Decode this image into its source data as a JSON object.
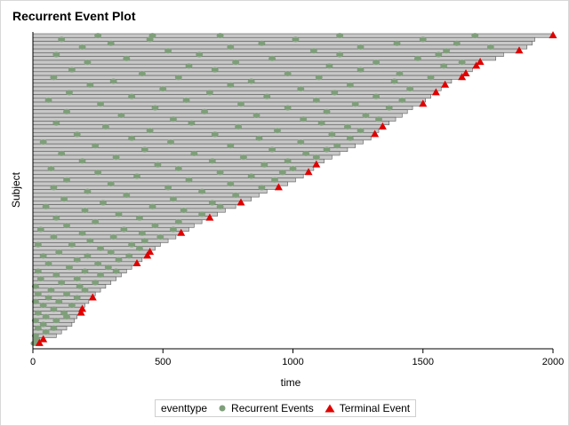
{
  "chart_data": {
    "type": "scatter",
    "title": "Recurrent Event Plot",
    "xlabel": "time",
    "ylabel": "Subject",
    "xlim": [
      0,
      2000
    ],
    "xticks": [
      0,
      500,
      1000,
      1500,
      2000
    ],
    "legend_title": "eventtype",
    "legend_position": "bottom",
    "colors": {
      "recurrent": "#7f9f7a",
      "terminal": "#e00000",
      "bar_fill": "#c8c8c8",
      "bar_edge": "#595959"
    },
    "series": [
      {
        "name": "Recurrent Events",
        "marker": "circle"
      },
      {
        "name": "Terminal Event",
        "marker": "triangle"
      }
    ],
    "subjects": [
      {
        "end": 2000,
        "terminal": true,
        "events": [
          250,
          460,
          720,
          1180,
          1700
        ]
      },
      {
        "end": 1930,
        "terminal": false,
        "events": [
          110,
          450,
          1010,
          1500
        ]
      },
      {
        "end": 1920,
        "terminal": false,
        "events": [
          300,
          880,
          1400,
          1630
        ]
      },
      {
        "end": 1900,
        "terminal": false,
        "events": [
          190,
          760,
          1260,
          1760
        ]
      },
      {
        "end": 1870,
        "terminal": true,
        "events": [
          520,
          1080,
          1590
        ]
      },
      {
        "end": 1810,
        "terminal": false,
        "events": [
          90,
          640,
          1180,
          1560
        ]
      },
      {
        "end": 1780,
        "terminal": false,
        "events": [
          360,
          920,
          1480
        ]
      },
      {
        "end": 1720,
        "terminal": true,
        "events": [
          210,
          780,
          1320,
          1650
        ]
      },
      {
        "end": 1705,
        "terminal": true,
        "events": [
          600,
          1140,
          1580
        ]
      },
      {
        "end": 1690,
        "terminal": false,
        "events": [
          150,
          700,
          1260
        ]
      },
      {
        "end": 1665,
        "terminal": true,
        "events": [
          420,
          980,
          1410
        ]
      },
      {
        "end": 1650,
        "terminal": true,
        "events": [
          80,
          560,
          1100,
          1530
        ]
      },
      {
        "end": 1610,
        "terminal": false,
        "events": [
          310,
          840,
          1390
        ]
      },
      {
        "end": 1585,
        "terminal": true,
        "events": [
          220,
          760,
          1220
        ]
      },
      {
        "end": 1570,
        "terminal": false,
        "events": [
          500,
          1030,
          1450
        ]
      },
      {
        "end": 1550,
        "terminal": true,
        "events": [
          140,
          680,
          1160
        ]
      },
      {
        "end": 1530,
        "terminal": false,
        "events": [
          380,
          900,
          1320
        ]
      },
      {
        "end": 1510,
        "terminal": false,
        "events": [
          60,
          590,
          1090,
          1420
        ]
      },
      {
        "end": 1500,
        "terminal": true,
        "events": [
          260,
          800,
          1240
        ]
      },
      {
        "end": 1460,
        "terminal": false,
        "events": [
          470,
          980,
          1370
        ]
      },
      {
        "end": 1440,
        "terminal": false,
        "events": [
          130,
          660,
          1130
        ]
      },
      {
        "end": 1420,
        "terminal": false,
        "events": [
          340,
          860,
          1280
        ]
      },
      {
        "end": 1395,
        "terminal": false,
        "events": [
          540,
          1040,
          1330
        ]
      },
      {
        "end": 1370,
        "terminal": false,
        "events": [
          90,
          610,
          1110
        ]
      },
      {
        "end": 1345,
        "terminal": true,
        "events": [
          280,
          790,
          1210
        ]
      },
      {
        "end": 1330,
        "terminal": false,
        "events": [
          450,
          940,
          1260
        ]
      },
      {
        "end": 1315,
        "terminal": true,
        "events": [
          170,
          700,
          1150
        ]
      },
      {
        "end": 1300,
        "terminal": false,
        "events": [
          380,
          870,
          1220
        ]
      },
      {
        "end": 1270,
        "terminal": false,
        "events": [
          40,
          530,
          1030
        ]
      },
      {
        "end": 1240,
        "terminal": false,
        "events": [
          240,
          760,
          1170
        ]
      },
      {
        "end": 1210,
        "terminal": false,
        "events": [
          430,
          920,
          1130
        ]
      },
      {
        "end": 1180,
        "terminal": false,
        "events": [
          110,
          620,
          1050
        ]
      },
      {
        "end": 1150,
        "terminal": false,
        "events": [
          320,
          810,
          1090
        ]
      },
      {
        "end": 1120,
        "terminal": false,
        "events": [
          190,
          690,
          980
        ]
      },
      {
        "end": 1090,
        "terminal": true,
        "events": [
          480,
          890
        ]
      },
      {
        "end": 1080,
        "terminal": false,
        "events": [
          70,
          560,
          1000
        ]
      },
      {
        "end": 1060,
        "terminal": true,
        "events": [
          250,
          720,
          960
        ]
      },
      {
        "end": 1040,
        "terminal": false,
        "events": [
          400,
          840
        ]
      },
      {
        "end": 1010,
        "terminal": false,
        "events": [
          130,
          600,
          930
        ]
      },
      {
        "end": 980,
        "terminal": false,
        "events": [
          300,
          760
        ]
      },
      {
        "end": 945,
        "terminal": true,
        "events": [
          80,
          520,
          880
        ]
      },
      {
        "end": 900,
        "terminal": false,
        "events": [
          210,
          650
        ]
      },
      {
        "end": 870,
        "terminal": false,
        "events": [
          360,
          780
        ]
      },
      {
        "end": 840,
        "terminal": false,
        "events": [
          120,
          540
        ]
      },
      {
        "end": 800,
        "terminal": true,
        "events": [
          270,
          690
        ]
      },
      {
        "end": 780,
        "terminal": false,
        "events": [
          50,
          460,
          720
        ]
      },
      {
        "end": 740,
        "terminal": false,
        "events": [
          200,
          580
        ]
      },
      {
        "end": 710,
        "terminal": false,
        "events": [
          330,
          650
        ]
      },
      {
        "end": 680,
        "terminal": true,
        "events": [
          90,
          410
        ]
      },
      {
        "end": 650,
        "terminal": false,
        "events": [
          240,
          560
        ]
      },
      {
        "end": 620,
        "terminal": false,
        "events": [
          130,
          470
        ]
      },
      {
        "end": 600,
        "terminal": false,
        "events": [
          30,
          350,
          540
        ]
      },
      {
        "end": 570,
        "terminal": true,
        "events": [
          190,
          420
        ]
      },
      {
        "end": 550,
        "terminal": false,
        "events": [
          80,
          310,
          490
        ]
      },
      {
        "end": 520,
        "terminal": false,
        "events": [
          220,
          430
        ]
      },
      {
        "end": 490,
        "terminal": false,
        "events": [
          20,
          150,
          380
        ]
      },
      {
        "end": 470,
        "terminal": false,
        "events": [
          260,
          410
        ]
      },
      {
        "end": 450,
        "terminal": true,
        "events": [
          100,
          300
        ]
      },
      {
        "end": 440,
        "terminal": true,
        "events": [
          40,
          210,
          370
        ]
      },
      {
        "end": 420,
        "terminal": false,
        "events": [
          170,
          330
        ]
      },
      {
        "end": 400,
        "terminal": true,
        "events": [
          60,
          250
        ]
      },
      {
        "end": 380,
        "terminal": false,
        "events": [
          140,
          290
        ]
      },
      {
        "end": 360,
        "terminal": false,
        "events": [
          20,
          200,
          320
        ]
      },
      {
        "end": 340,
        "terminal": false,
        "events": [
          90,
          260
        ]
      },
      {
        "end": 320,
        "terminal": false,
        "events": [
          30,
          170
        ]
      },
      {
        "end": 300,
        "terminal": false,
        "events": [
          110,
          240
        ]
      },
      {
        "end": 280,
        "terminal": false,
        "events": [
          10,
          180
        ]
      },
      {
        "end": 260,
        "terminal": false,
        "events": [
          70,
          200
        ]
      },
      {
        "end": 240,
        "terminal": false,
        "events": [
          20,
          130
        ]
      },
      {
        "end": 230,
        "terminal": true,
        "events": [
          60,
          170
        ]
      },
      {
        "end": 215,
        "terminal": false,
        "events": [
          10,
          100
        ]
      },
      {
        "end": 200,
        "terminal": false,
        "events": [
          40,
          150
        ]
      },
      {
        "end": 190,
        "terminal": true,
        "events": [
          80
        ]
      },
      {
        "end": 185,
        "terminal": true,
        "events": [
          20,
          120
        ]
      },
      {
        "end": 170,
        "terminal": false,
        "events": [
          50,
          130
        ]
      },
      {
        "end": 160,
        "terminal": false,
        "events": [
          10,
          90
        ]
      },
      {
        "end": 150,
        "terminal": false,
        "events": [
          40
        ]
      },
      {
        "end": 130,
        "terminal": false,
        "events": [
          20,
          80
        ]
      },
      {
        "end": 110,
        "terminal": false,
        "events": [
          50
        ]
      },
      {
        "end": 90,
        "terminal": false,
        "events": [
          10
        ]
      },
      {
        "end": 40,
        "terminal": true,
        "events": [
          15
        ]
      },
      {
        "end": 25,
        "terminal": true,
        "events": [
          5
        ]
      }
    ]
  }
}
